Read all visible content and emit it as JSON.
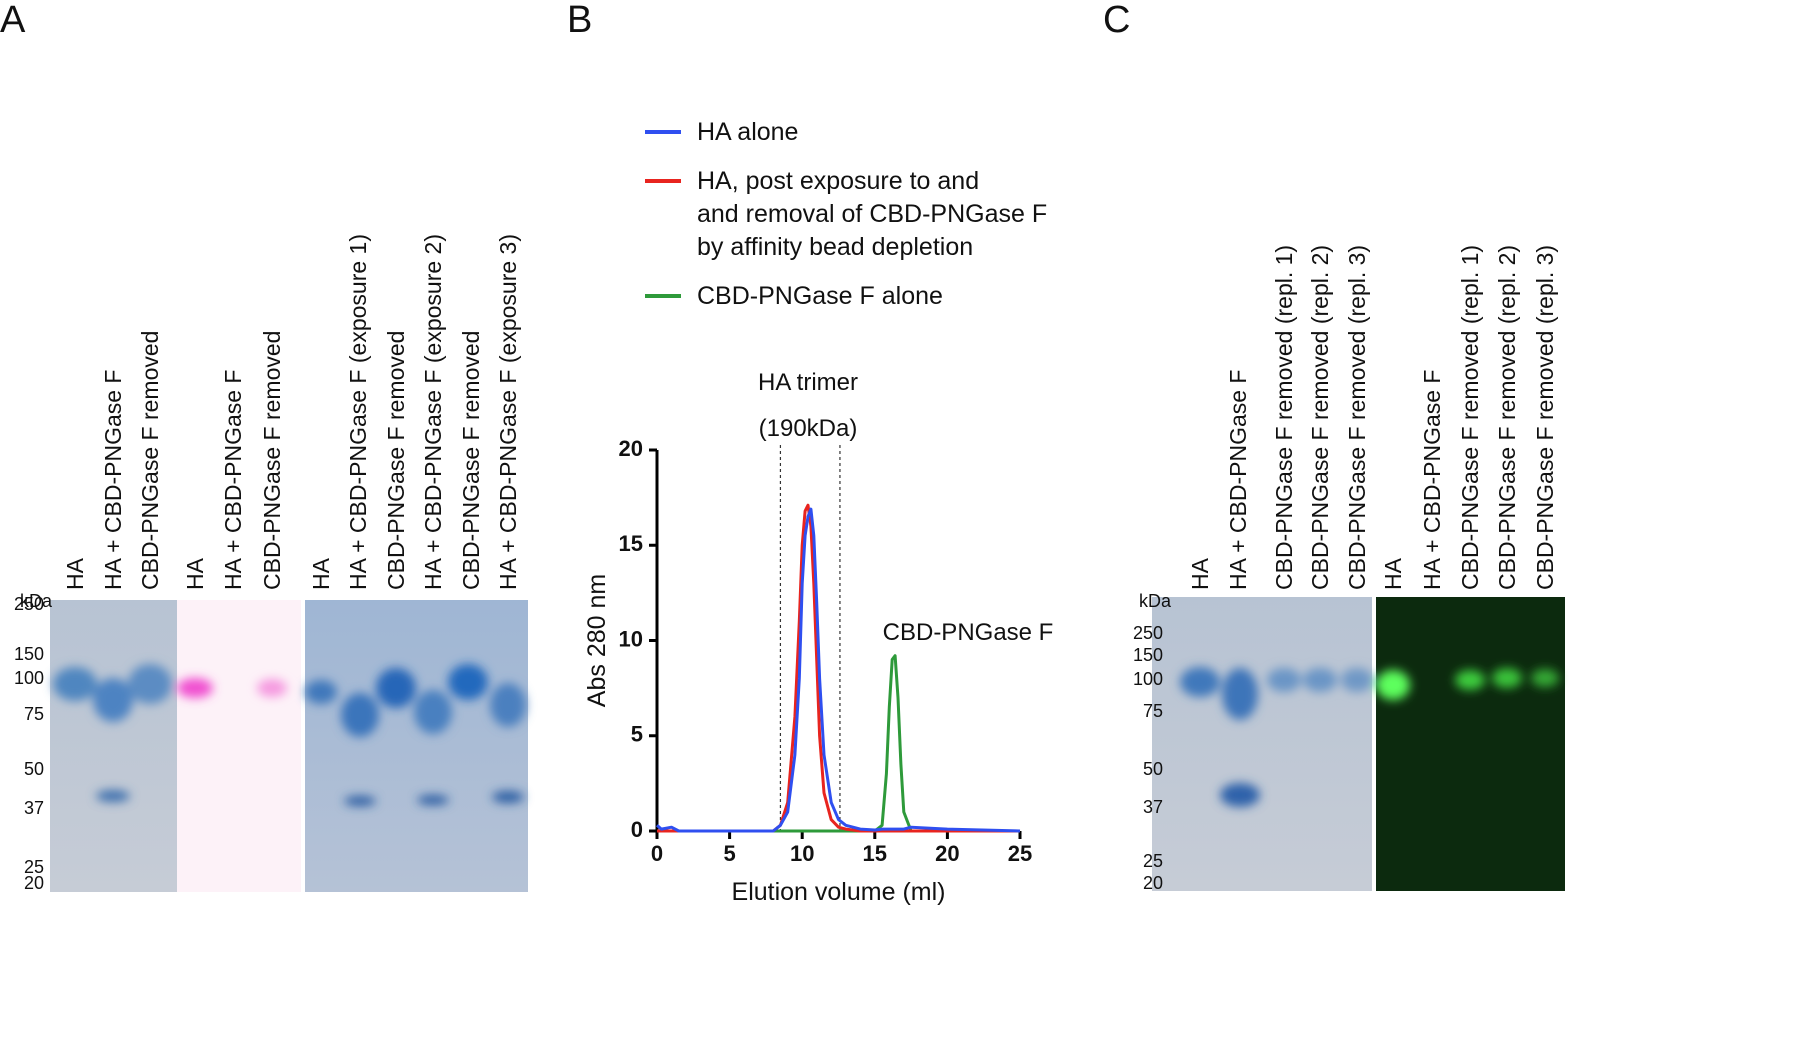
{
  "panel_labels": [
    "A",
    "B",
    "C"
  ],
  "gel_a": {
    "unit": "kDa",
    "markers": [
      250,
      150,
      100,
      75,
      50,
      37,
      25,
      20
    ],
    "lanes": [
      "HA",
      "HA + CBD-PNGase F",
      "CBD-PNGase F removed",
      "HA",
      "HA + CBD-PNGase F",
      "CBD-PNGase F removed",
      "HA",
      "HA + CBD-PNGase F (exposure 1)",
      "CBD-PNGase F removed",
      "HA + CBD-PNGase F (exposure 2)",
      "CBD-PNGase F removed",
      "HA + CBD-PNGase F (exposure 3)"
    ]
  },
  "gel_c": {
    "unit": "kDa",
    "markers": [
      250,
      150,
      100,
      75,
      50,
      37,
      25,
      20
    ],
    "lanes": [
      "HA",
      "HA + CBD-PNGase F",
      "CBD-PNGase F removed (repl. 1)",
      "CBD-PNGase F removed (repl. 2)",
      "CBD-PNGase F removed (repl. 3)",
      "HA",
      "HA + CBD-PNGase F",
      "CBD-PNGase F removed (repl. 1)",
      "CBD-PNGase F removed (repl. 2)",
      "CBD-PNGase F removed (repl. 3)"
    ]
  },
  "chart_data": {
    "type": "line",
    "xlabel": "Elution volume (ml)",
    "ylabel": "Abs 280 nm",
    "xlim": [
      0,
      25
    ],
    "xticks": [
      0,
      5,
      10,
      15,
      20,
      25
    ],
    "ylim": [
      0,
      20
    ],
    "yticks": [
      0,
      5,
      10,
      15,
      20
    ],
    "x": [
      0,
      0.3,
      1,
      1.5,
      2,
      5,
      8,
      8.5,
      9,
      9.5,
      9.8,
      10,
      10.2,
      10.4,
      10.6,
      10.8,
      11,
      11.2,
      11.5,
      12,
      12.5,
      13,
      14,
      15,
      15.5,
      15.8,
      16,
      16.2,
      16.4,
      16.6,
      16.8,
      17,
      17.5,
      20,
      25
    ],
    "series": [
      {
        "name": "HA alone",
        "color": "#2f4ff0",
        "values": [
          0.3,
          0.1,
          0.2,
          0,
          0,
          0,
          0,
          0.3,
          1,
          4,
          8,
          13,
          15.5,
          16.5,
          16.9,
          15.5,
          12,
          8,
          4,
          1.5,
          0.6,
          0.3,
          0.1,
          0.05,
          0.1,
          0.1,
          0.1,
          0.1,
          0.1,
          0.1,
          0.1,
          0.1,
          0.2,
          0.1,
          0
        ]
      },
      {
        "name": "HA, post exposure to and\nand removal of CBD-PNGase F\nby affinity bead depletion",
        "color": "#e8241f",
        "values": [
          0,
          0,
          0,
          0,
          0,
          0,
          0,
          0.3,
          1.5,
          6,
          11,
          15,
          16.8,
          17.1,
          16,
          13,
          9,
          5,
          2,
          0.6,
          0.2,
          0.1,
          0,
          0,
          0,
          0,
          0,
          0,
          0,
          0,
          0,
          0,
          0,
          0,
          0
        ]
      },
      {
        "name": "CBD-PNGase F alone",
        "color": "#2e9a3a",
        "values": [
          0,
          0,
          0,
          0,
          0,
          0,
          0,
          0,
          0,
          0,
          0,
          0,
          0,
          0,
          0,
          0,
          0,
          0,
          0,
          0,
          0,
          0,
          0,
          0,
          0.3,
          3,
          6.5,
          9,
          9.2,
          7,
          3.5,
          1,
          0,
          0,
          0
        ]
      }
    ],
    "vlines": [
      8.5,
      12.6
    ],
    "annotations": [
      "HA trimer",
      "(190kDa)",
      "CBD-PNGase F"
    ]
  }
}
